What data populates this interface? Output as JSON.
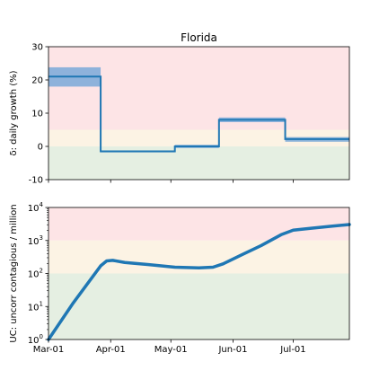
{
  "chart_data": [
    {
      "type": "line",
      "title": "Florida",
      "xlabel": "",
      "ylabel": "δ: daily growth (%)",
      "ylim": [
        -10,
        30
      ],
      "xlim": [
        "2020-03-01",
        "2020-07-29"
      ],
      "yticks": [
        -10,
        0,
        10,
        20,
        30
      ],
      "x_tick_labels": [
        {
          "date": "2020-03-01",
          "label": "Mar-01"
        },
        {
          "date": "2020-04-01",
          "label": "Apr-01"
        },
        {
          "date": "2020-05-01",
          "label": "May-01"
        },
        {
          "date": "2020-06-01",
          "label": "Jun-01"
        },
        {
          "date": "2020-07-01",
          "label": "Jul-01"
        }
      ],
      "bands": [
        {
          "from": 5,
          "to": 30,
          "color": "#fde4e6"
        },
        {
          "from": 0,
          "to": 5,
          "color": "#fcf3e4"
        },
        {
          "from": -10,
          "to": 0,
          "color": "#e5efe2"
        }
      ],
      "series": [
        {
          "style": "step",
          "color": "#1f77b4",
          "band_color": "#7aa9d8",
          "segments": [
            {
              "start": "2020-03-01",
              "end": "2020-03-27",
              "value": 21.0,
              "low": 18.0,
              "high": 23.8
            },
            {
              "start": "2020-03-27",
              "end": "2020-05-03",
              "value": -1.5,
              "low": -1.8,
              "high": -1.3
            },
            {
              "start": "2020-05-03",
              "end": "2020-05-25",
              "value": 0.0,
              "low": -0.5,
              "high": 0.5
            },
            {
              "start": "2020-05-25",
              "end": "2020-06-27",
              "value": 8.0,
              "low": 7.3,
              "high": 8.7
            },
            {
              "start": "2020-06-27",
              "end": "2020-07-29",
              "value": 2.2,
              "low": 1.4,
              "high": 2.8
            }
          ]
        }
      ]
    },
    {
      "type": "line",
      "title": "",
      "xlabel": "",
      "ylabel": "UC: uncorr contagious / million",
      "yscale": "log",
      "ylim": [
        1,
        10000
      ],
      "xlim": [
        "2020-03-01",
        "2020-07-29"
      ],
      "ytick_labels": [
        {
          "value": 1,
          "base": "10",
          "exp": "0"
        },
        {
          "value": 10,
          "base": "10",
          "exp": "1"
        },
        {
          "value": 100,
          "base": "10",
          "exp": "2"
        },
        {
          "value": 1000,
          "base": "10",
          "exp": "3"
        },
        {
          "value": 10000,
          "base": "10",
          "exp": "4"
        }
      ],
      "x_tick_labels": [
        {
          "date": "2020-03-01",
          "label": "Mar-01"
        },
        {
          "date": "2020-04-01",
          "label": "Apr-01"
        },
        {
          "date": "2020-05-01",
          "label": "May-01"
        },
        {
          "date": "2020-06-01",
          "label": "Jun-01"
        },
        {
          "date": "2020-07-01",
          "label": "Jul-01"
        }
      ],
      "bands": [
        {
          "from": 1000,
          "to": 10000,
          "color": "#fde4e6"
        },
        {
          "from": 100,
          "to": 1000,
          "color": "#fcf3e4"
        },
        {
          "from": 1,
          "to": 100,
          "color": "#e5efe2"
        }
      ],
      "series": [
        {
          "style": "line",
          "color": "#1f77b4",
          "points": [
            {
              "x": "2020-03-01",
              "y": 1.0
            },
            {
              "x": "2020-03-13",
              "y": 12
            },
            {
              "x": "2020-03-27",
              "y": 170
            },
            {
              "x": "2020-03-30",
              "y": 240
            },
            {
              "x": "2020-04-02",
              "y": 250
            },
            {
              "x": "2020-04-08",
              "y": 215
            },
            {
              "x": "2020-04-20",
              "y": 185
            },
            {
              "x": "2020-05-03",
              "y": 155
            },
            {
              "x": "2020-05-15",
              "y": 148
            },
            {
              "x": "2020-05-22",
              "y": 155
            },
            {
              "x": "2020-05-27",
              "y": 195
            },
            {
              "x": "2020-06-05",
              "y": 360
            },
            {
              "x": "2020-06-15",
              "y": 700
            },
            {
              "x": "2020-06-25",
              "y": 1500
            },
            {
              "x": "2020-07-01",
              "y": 2050
            },
            {
              "x": "2020-07-10",
              "y": 2350
            },
            {
              "x": "2020-07-20",
              "y": 2700
            },
            {
              "x": "2020-07-29",
              "y": 3050
            }
          ]
        }
      ]
    }
  ]
}
